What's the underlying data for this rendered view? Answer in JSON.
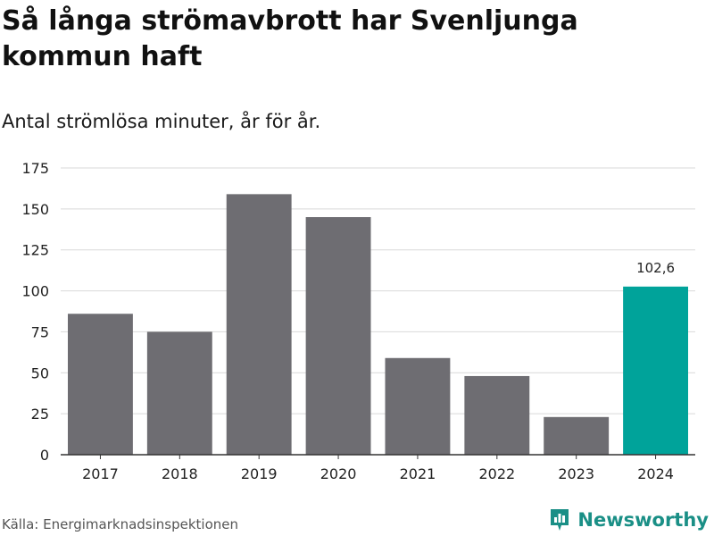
{
  "title": "Så långa strömavbrott har Svenljunga kommun haft",
  "subtitle": "Antal strömlösa minuter, år för år.",
  "source": "Källa: Energimarknadsinspektionen",
  "brand": "Newsworthy",
  "colors": {
    "bar": "#6e6d72",
    "highlight": "#00a39a",
    "grid": "#d9d9d9",
    "brand": "#1a8f86"
  },
  "chart_data": {
    "type": "bar",
    "title": "Så långa strömavbrott har Svenljunga kommun haft",
    "subtitle": "Antal strömlösa minuter, år för år.",
    "categories": [
      "2017",
      "2018",
      "2019",
      "2020",
      "2021",
      "2022",
      "2023",
      "2024"
    ],
    "values": [
      86,
      75,
      159,
      145,
      59,
      48,
      23,
      102.6
    ],
    "highlight_index": 7,
    "data_labels": [
      {
        "index": 7,
        "text": "102,6"
      }
    ],
    "yticks": [
      0,
      25,
      50,
      75,
      100,
      125,
      150,
      175
    ],
    "ylim": [
      0,
      175
    ],
    "xlabel": "",
    "ylabel": "",
    "grid": true
  }
}
